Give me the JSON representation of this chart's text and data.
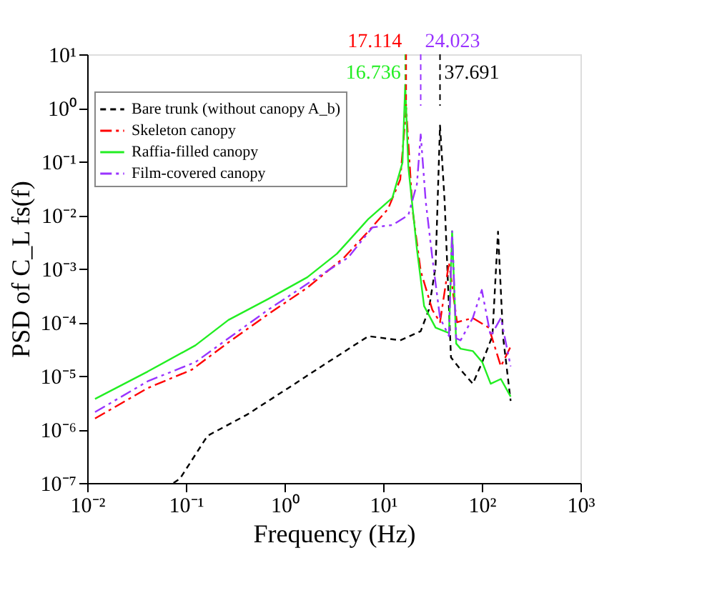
{
  "chart_data": {
    "type": "line",
    "xlabel": "Frequency (Hz)",
    "ylabel": "PSD of C_L fs(f)",
    "log": "xy",
    "xlim": [
      0.01,
      1000
    ],
    "ylim": [
      1e-07,
      10
    ],
    "xticks": [
      {
        "value": 0.01,
        "label": "10⁻²"
      },
      {
        "value": 0.1,
        "label": "10⁻¹"
      },
      {
        "value": 1,
        "label": "10⁰"
      },
      {
        "value": 10,
        "label": "10¹"
      },
      {
        "value": 100,
        "label": "10²"
      },
      {
        "value": 1000,
        "label": "10³"
      }
    ],
    "yticks": [
      {
        "value": 1e-07,
        "label": "10⁻⁷"
      },
      {
        "value": 1e-06,
        "label": "10⁻⁶"
      },
      {
        "value": 1e-05,
        "label": "10⁻⁵"
      },
      {
        "value": 0.0001,
        "label": "10⁻⁴"
      },
      {
        "value": 0.001,
        "label": "10⁻³"
      },
      {
        "value": 0.01,
        "label": "10⁻²"
      },
      {
        "value": 0.1,
        "label": "10⁻¹"
      },
      {
        "value": 1,
        "label": "10⁰"
      },
      {
        "value": 10,
        "label": "10¹"
      }
    ],
    "grid": false,
    "legend": "top left",
    "marker": "none",
    "series": [
      {
        "name": "Bare trunk (without canopy A_b)",
        "color": "#000000",
        "line_style": "dashed",
        "x": [
          0.075,
          0.087,
          0.166,
          0.42,
          1.09,
          2.76,
          7.1,
          14.9,
          24,
          29,
          34,
          37.691,
          42,
          48.7,
          61,
          81,
          101,
          128,
          146,
          164,
          196
        ],
        "values": [
          1e-07,
          1.2e-07,
          7.6e-07,
          1.9e-06,
          5.9e-06,
          1.8e-05,
          5.5e-05,
          4.6e-05,
          6.8e-05,
          0.00017,
          0.0011,
          0.47,
          0.018,
          2.2e-05,
          1.3e-05,
          7.1e-06,
          1.8e-05,
          5.5e-05,
          0.0049,
          5.5e-05,
          3.4e-06
        ]
      },
      {
        "name": "Skeleton canopy",
        "color": "#ff0000",
        "line_style": "dashdot",
        "x": [
          0.012,
          0.041,
          0.115,
          0.27,
          0.68,
          1.7,
          4.0,
          7.1,
          11.2,
          14.9,
          17.114,
          19.8,
          24,
          31.5,
          37.7,
          46.5,
          56,
          81,
          118,
          156,
          196
        ],
        "values": [
          1.6e-06,
          5.9e-06,
          1.3e-05,
          4.2e-05,
          0.00014,
          0.00044,
          0.0016,
          0.005,
          0.013,
          0.046,
          1.0,
          0.013,
          0.00091,
          0.00017,
          0.0001,
          0.0013,
          0.0001,
          0.00012,
          7.9e-05,
          1.5e-05,
          3.5e-05
        ]
      },
      {
        "name": "Raffia-filled canopy",
        "color": "#22ee22",
        "line_style": "solid",
        "x": [
          0.012,
          0.041,
          0.125,
          0.27,
          0.68,
          1.7,
          3.4,
          4.4,
          7.1,
          12.4,
          15.7,
          16.736,
          18,
          22,
          26,
          34,
          46.5,
          50,
          55,
          61,
          81,
          101,
          123,
          156,
          196
        ],
        "values": [
          3.7e-06,
          1.2e-05,
          3.7e-05,
          0.00011,
          0.00027,
          0.00069,
          0.0019,
          0.0032,
          0.0085,
          0.021,
          0.095,
          2.7,
          0.079,
          0.0023,
          0.0002,
          7.9e-05,
          6.3e-05,
          0.005,
          4e-05,
          3.2e-05,
          2.9e-05,
          1.8e-05,
          7.1e-06,
          8.7e-06,
          4.1e-06
        ]
      },
      {
        "name": "Film-covered canopy",
        "color": "#9933ff",
        "line_style": "dashdotdot",
        "x": [
          0.012,
          0.041,
          0.125,
          0.27,
          0.68,
          1.7,
          4.4,
          7.8,
          12.4,
          18,
          22,
          24.023,
          27,
          31.5,
          37.7,
          46.5,
          50,
          55,
          61,
          81,
          100,
          123,
          156,
          196
        ],
        "values": [
          2.1e-06,
          7.9e-06,
          1.8e-05,
          5e-05,
          0.00017,
          0.00052,
          0.0016,
          0.0059,
          0.0065,
          0.01,
          0.038,
          0.32,
          0.018,
          0.0016,
          0.00012,
          5.5e-05,
          0.005,
          5e-05,
          4.6e-05,
          0.00012,
          0.0004,
          5.5e-05,
          0.00012,
          1.5e-05
        ]
      }
    ],
    "ref_lines": [
      {
        "axis": "x",
        "value": 16.736,
        "label": "16.736",
        "color": "#22ee22",
        "line_style": "dashed"
      },
      {
        "axis": "x",
        "value": 17.114,
        "label": "17.114",
        "color": "#ff0000",
        "line_style": "dashed"
      },
      {
        "axis": "x",
        "value": 24.023,
        "label": "24.023",
        "color": "#9933ff",
        "line_style": "dashed"
      },
      {
        "axis": "x",
        "value": 37.691,
        "label": "37.691",
        "color": "#000000",
        "line_style": "dashed"
      }
    ]
  }
}
